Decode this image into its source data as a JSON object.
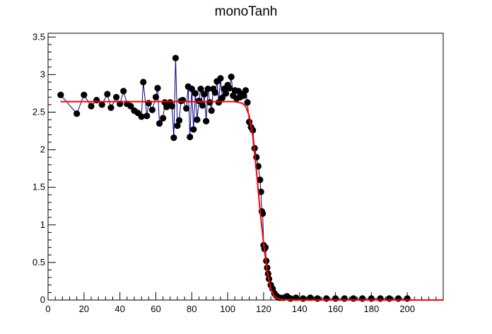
{
  "chart_data": {
    "type": "scatter",
    "title": "monoTanh",
    "xlabel": "",
    "ylabel": "",
    "xlim": [
      0,
      220
    ],
    "ylim": [
      0,
      3.55
    ],
    "xticks": [
      0,
      20,
      40,
      60,
      80,
      100,
      120,
      140,
      160,
      180,
      200
    ],
    "yticks": [
      0,
      0.5,
      1,
      1.5,
      2,
      2.5,
      3,
      3.5
    ],
    "xtick_labels": [
      "0",
      "20",
      "40",
      "60",
      "80",
      "100",
      "120",
      "140",
      "160",
      "180",
      "200"
    ],
    "ytick_labels": [
      "0",
      "0.5",
      "1",
      "1.5",
      "2",
      "2.5",
      "3",
      "3.5"
    ],
    "grid": false,
    "series": [
      {
        "color": "#000080",
        "marker_color": "#000000",
        "points": [
          [
            7,
            2.73
          ],
          [
            16,
            2.48
          ],
          [
            20,
            2.73
          ],
          [
            24,
            2.58
          ],
          [
            27,
            2.66
          ],
          [
            30,
            2.6
          ],
          [
            33,
            2.74
          ],
          [
            35,
            2.56
          ],
          [
            38,
            2.7
          ],
          [
            40,
            2.61
          ],
          [
            42,
            2.78
          ],
          [
            44,
            2.61
          ],
          [
            46,
            2.58
          ],
          [
            48,
            2.52
          ],
          [
            50,
            2.49
          ],
          [
            52,
            2.44
          ],
          [
            53,
            2.9
          ],
          [
            55,
            2.45
          ],
          [
            56,
            2.62
          ],
          [
            58,
            2.53
          ],
          [
            60,
            2.7
          ],
          [
            61,
            2.82
          ],
          [
            62,
            2.35
          ],
          [
            64,
            2.42
          ],
          [
            65,
            2.63
          ],
          [
            66,
            2.57
          ],
          [
            68,
            2.63
          ],
          [
            69,
            2.58
          ],
          [
            70,
            2.16
          ],
          [
            71,
            3.22
          ],
          [
            72,
            2.32
          ],
          [
            73,
            2.39
          ],
          [
            74,
            2.65
          ],
          [
            75,
            2.66
          ],
          [
            77,
            2.55
          ],
          [
            78,
            2.84
          ],
          [
            79,
            2.17
          ],
          [
            80,
            2.81
          ],
          [
            81,
            2.27
          ],
          [
            82,
            2.75
          ],
          [
            83,
            2.4
          ],
          [
            84,
            2.65
          ],
          [
            85,
            2.81
          ],
          [
            86,
            2.59
          ],
          [
            87,
            2.74
          ],
          [
            88,
            2.38
          ],
          [
            89,
            2.81
          ],
          [
            90,
            2.63
          ],
          [
            91,
            2.52
          ],
          [
            92,
            2.81
          ],
          [
            93,
            2.76
          ],
          [
            94,
            2.91
          ],
          [
            95,
            2.63
          ],
          [
            96,
            2.95
          ],
          [
            97,
            2.69
          ],
          [
            98,
            2.81
          ],
          [
            99,
            2.75
          ],
          [
            100,
            2.86
          ],
          [
            101,
            2.82
          ],
          [
            102,
            2.97
          ],
          [
            103,
            2.72
          ],
          [
            104,
            2.79
          ],
          [
            105,
            2.68
          ],
          [
            106,
            2.78
          ],
          [
            107,
            2.7
          ],
          [
            108,
            2.74
          ],
          [
            109,
            2.72
          ],
          [
            110,
            2.79
          ],
          [
            111,
            2.63
          ],
          [
            112,
            2.37
          ],
          [
            113,
            2.3
          ],
          [
            114,
            2.26
          ],
          [
            115,
            2.02
          ],
          [
            116,
            1.9
          ],
          [
            117,
            1.78
          ],
          [
            118,
            1.6
          ],
          [
            118.5,
            1.44
          ],
          [
            119,
            1.18
          ],
          [
            119.5,
            1.15
          ],
          [
            120,
            0.73
          ],
          [
            120.5,
            0.68
          ],
          [
            121,
            0.7
          ],
          [
            121.5,
            0.52
          ],
          [
            122,
            0.43
          ],
          [
            122.5,
            0.35
          ],
          [
            123,
            0.28
          ],
          [
            124,
            0.2
          ],
          [
            125,
            0.15
          ],
          [
            126,
            0.09
          ],
          [
            127,
            0.06
          ],
          [
            128,
            0.04
          ],
          [
            129,
            0.03
          ],
          [
            131,
            0.03
          ],
          [
            133,
            0.05
          ],
          [
            135,
            0.02
          ],
          [
            138,
            0.03
          ],
          [
            142,
            0.02
          ],
          [
            146,
            0.03
          ],
          [
            150,
            0.02
          ],
          [
            155,
            0.02
          ],
          [
            160,
            0.02
          ],
          [
            165,
            0.02
          ],
          [
            170,
            0.02
          ],
          [
            175,
            0.02
          ],
          [
            180,
            0.02
          ],
          [
            185,
            0.02
          ],
          [
            190,
            0.02
          ],
          [
            195,
            0.02
          ],
          [
            200,
            0.02
          ]
        ]
      }
    ],
    "fit": {
      "color": "#ff0000",
      "points": [
        [
          7,
          2.64
        ],
        [
          100,
          2.64
        ],
        [
          104,
          2.64
        ],
        [
          106,
          2.63
        ],
        [
          108,
          2.62
        ],
        [
          110,
          2.58
        ],
        [
          112,
          2.45
        ],
        [
          114,
          2.18
        ],
        [
          116,
          1.72
        ],
        [
          118,
          1.2
        ],
        [
          120,
          0.75
        ],
        [
          122,
          0.38
        ],
        [
          124,
          0.15
        ],
        [
          126,
          0.05
        ],
        [
          128,
          0.015
        ],
        [
          130,
          0.005
        ],
        [
          140,
          0
        ],
        [
          220,
          0
        ]
      ]
    }
  }
}
